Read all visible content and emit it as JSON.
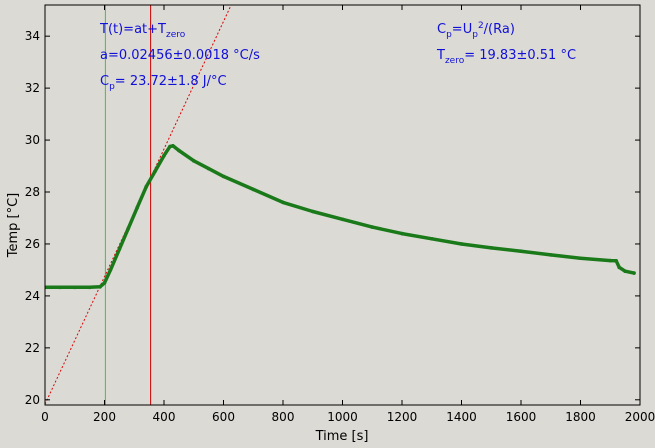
{
  "chart_data": {
    "type": "line",
    "title": "",
    "xlabel": "Time [s]",
    "ylabel": "Temp [°C]",
    "xlim": [
      0,
      2000
    ],
    "ylim": [
      19.8,
      35.2
    ],
    "xticks": [
      0,
      200,
      400,
      600,
      800,
      1000,
      1200,
      1400,
      1600,
      1800,
      2000
    ],
    "yticks": [
      20,
      22,
      24,
      26,
      28,
      30,
      32,
      34
    ],
    "grid": false,
    "legend": "none",
    "colors": {
      "data": "#1a7a1a",
      "fit": "#dd0000",
      "start_marker": "#33cc33",
      "end_marker": "#cc0000",
      "annotation": "#1010d8"
    },
    "series": [
      {
        "style": "points",
        "x": [
          0,
          50,
          100,
          150,
          185,
          200,
          220,
          250,
          280,
          310,
          340,
          370,
          400,
          420,
          430,
          450,
          500,
          550,
          600,
          700,
          800,
          900,
          1000,
          1100,
          1200,
          1300,
          1400,
          1500,
          1600,
          1700,
          1800,
          1900,
          1920,
          1930,
          1950,
          1980
        ],
        "y": [
          24.33,
          24.33,
          24.33,
          24.33,
          24.35,
          24.5,
          25.0,
          25.8,
          26.6,
          27.4,
          28.2,
          28.8,
          29.4,
          29.75,
          29.78,
          29.6,
          29.2,
          28.9,
          28.6,
          28.1,
          27.6,
          27.25,
          26.95,
          26.65,
          26.4,
          26.2,
          26.0,
          25.85,
          25.72,
          25.58,
          25.45,
          25.36,
          25.35,
          25.1,
          24.95,
          24.88
        ]
      },
      {
        "style": "dashed-fit",
        "x": [
          0,
          627
        ],
        "y": [
          19.83,
          35.23
        ]
      }
    ],
    "vlines": [
      {
        "x": 203,
        "color": "#33cc33"
      },
      {
        "x": 355,
        "color": "#cc0000"
      }
    ],
    "annotations": {
      "eq_T": {
        "pre": "T(t)=at+T",
        "sub": "zero"
      },
      "eq_a": {
        "text": "a=0.02456±0.0018 °C/s"
      },
      "eq_C": {
        "pre": "C",
        "sub": "p",
        "post": "= 23.72±1.8 J/°C"
      },
      "eq_Cp": {
        "pre": "C",
        "sub": "p",
        "mid": "=U",
        "sub2": "p",
        "sup": "2",
        "post": "/(Ra)"
      },
      "eq_Tzero": {
        "pre": "T",
        "sub": "zero",
        "post": "= 19.83±0.51 °C"
      }
    }
  }
}
